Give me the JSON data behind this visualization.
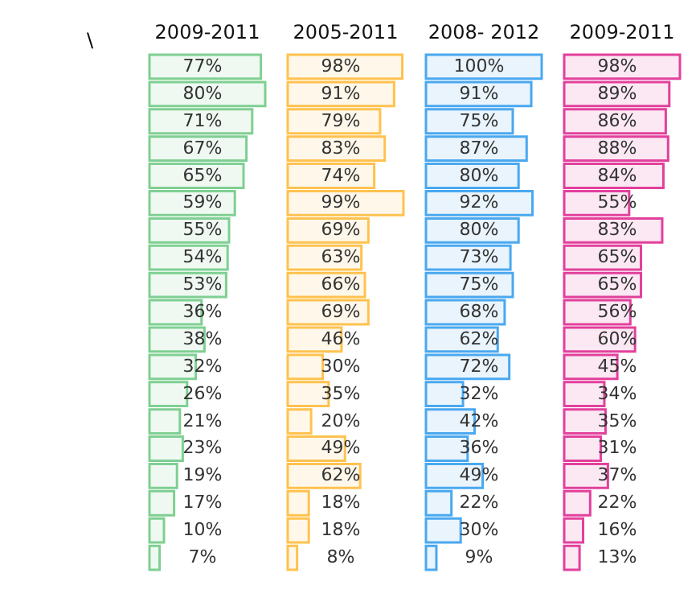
{
  "chart_data": [
    {
      "type": "bar",
      "orientation": "horizontal",
      "title": "2009-2011",
      "annotations": [
        "\\"
      ],
      "categories": [
        null,
        null,
        null,
        null,
        null,
        null,
        null,
        null,
        null,
        null,
        null,
        null,
        null,
        null,
        null,
        null,
        null,
        null,
        null
      ],
      "values": [
        77,
        80,
        71,
        67,
        65,
        59,
        55,
        54,
        53,
        36,
        38,
        32,
        26,
        21,
        23,
        19,
        17,
        10,
        7
      ],
      "value_labels": [
        "77%",
        "80%",
        "71%",
        "67%",
        "65%",
        "59%",
        "55%",
        "54%",
        "53%",
        "36%",
        "38%",
        "32%",
        "26%",
        "21%",
        "23%",
        "19%",
        "17%",
        "10%",
        "7%"
      ],
      "color": "#7fcf92"
    },
    {
      "type": "bar",
      "orientation": "horizontal",
      "title": "2005-2011",
      "categories": [
        null,
        null,
        null,
        null,
        null,
        null,
        null,
        null,
        null,
        null,
        null,
        null,
        null,
        null,
        null,
        null,
        null,
        null,
        null
      ],
      "values": [
        98,
        91,
        79,
        83,
        74,
        99,
        69,
        63,
        66,
        69,
        46,
        30,
        35,
        20,
        49,
        62,
        18,
        18,
        8
      ],
      "value_labels": [
        "98%",
        "91%",
        "79%",
        "83%",
        "74%",
        "99%",
        "69%",
        "63%",
        "66%",
        "69%",
        "46%",
        "30%",
        "35%",
        "20%",
        "49%",
        "62%",
        "18%",
        "18%",
        "8%"
      ],
      "color": "#ffc24f"
    },
    {
      "type": "bar",
      "orientation": "horizontal",
      "title": "2008- 2012",
      "categories": [
        null,
        null,
        null,
        null,
        null,
        null,
        null,
        null,
        null,
        null,
        null,
        null,
        null,
        null,
        null,
        null,
        null,
        null,
        null
      ],
      "values": [
        100,
        91,
        75,
        87,
        80,
        92,
        80,
        73,
        75,
        68,
        62,
        72,
        32,
        42,
        36,
        49,
        22,
        30,
        9
      ],
      "value_labels": [
        "100%",
        "91%",
        "75%",
        "87%",
        "80%",
        "92%",
        "80%",
        "73%",
        "75%",
        "68%",
        "62%",
        "72%",
        "32%",
        "42%",
        "36%",
        "49%",
        "22%",
        "30%",
        "9%"
      ],
      "color": "#4aa8ef"
    },
    {
      "type": "bar",
      "orientation": "horizontal",
      "title": "2009-2011",
      "categories": [
        null,
        null,
        null,
        null,
        null,
        null,
        null,
        null,
        null,
        null,
        null,
        null,
        null,
        null,
        null,
        null,
        null,
        null,
        null
      ],
      "values": [
        98,
        89,
        86,
        88,
        84,
        55,
        83,
        65,
        65,
        56,
        60,
        45,
        34,
        35,
        31,
        37,
        22,
        16,
        13
      ],
      "value_labels": [
        "98%",
        "89%",
        "86%",
        "88%",
        "84%",
        "55%",
        "83%",
        "65%",
        "65%",
        "56%",
        "60%",
        "45%",
        "34%",
        "35%",
        "31%",
        "37%",
        "22%",
        "16%",
        "13%"
      ],
      "color": "#e2409c"
    }
  ]
}
